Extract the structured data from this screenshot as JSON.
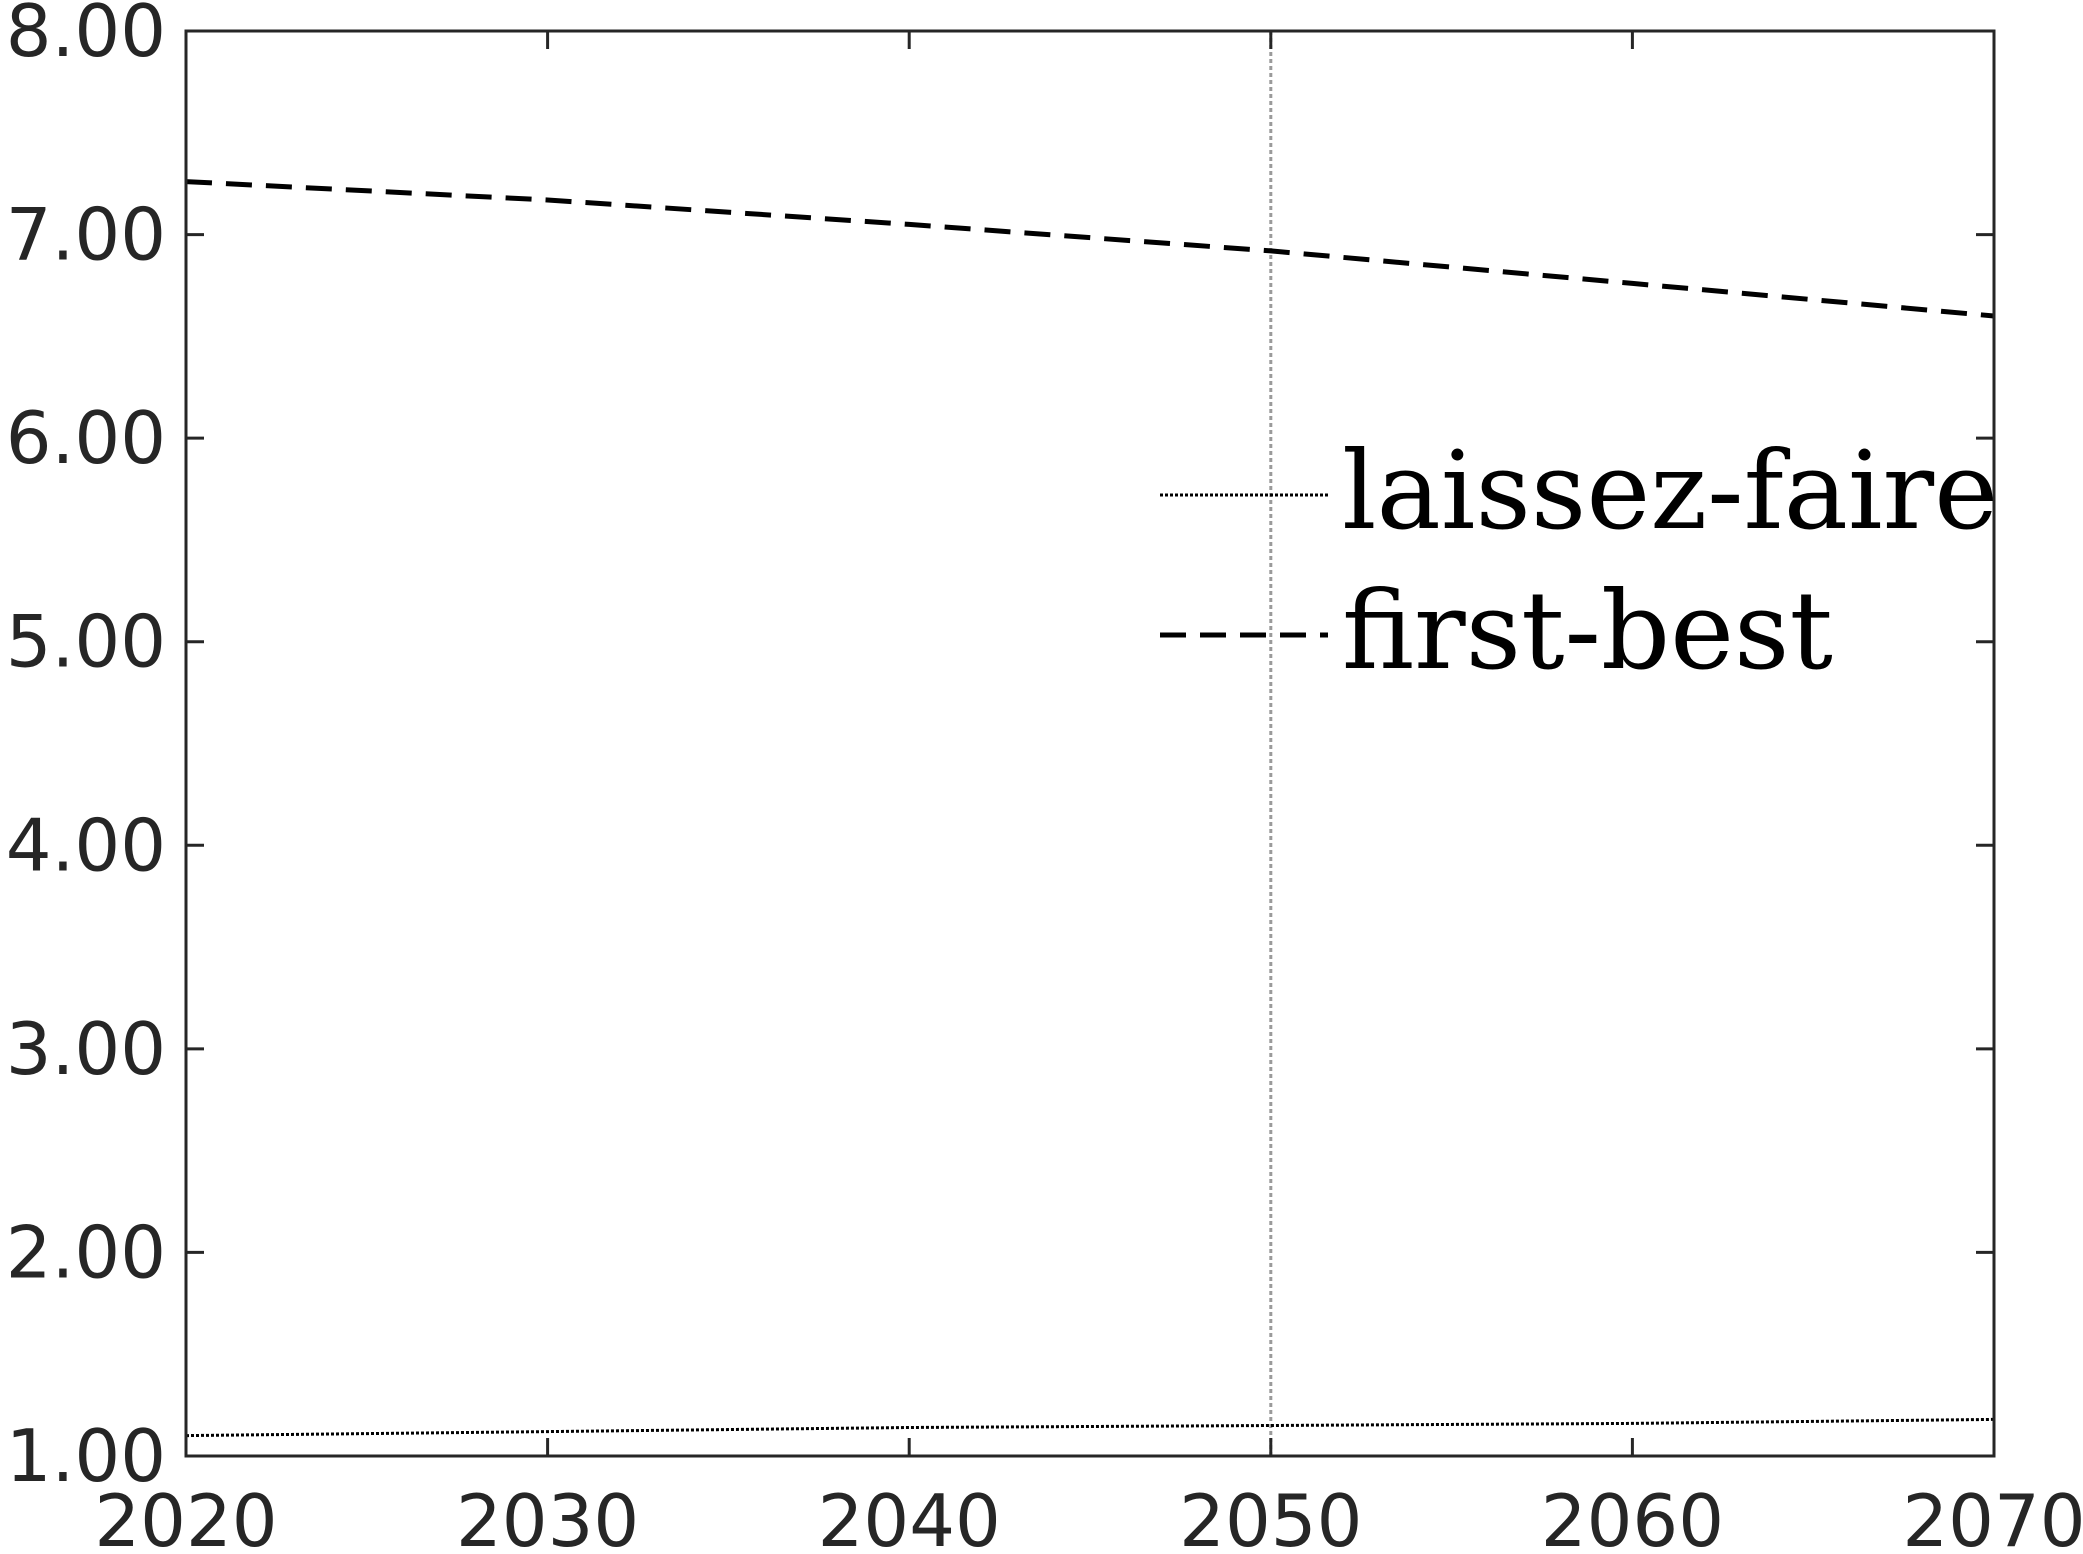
{
  "chart_data": {
    "type": "line",
    "title": "",
    "xlabel": "",
    "ylabel": "",
    "xlim": [
      2020,
      2070
    ],
    "ylim": [
      1.0,
      8.0
    ],
    "x_ticks": [
      "2020",
      "2030",
      "2040",
      "2050",
      "2060",
      "2070"
    ],
    "y_ticks": [
      "1.00",
      "2.00",
      "3.00",
      "4.00",
      "5.00",
      "6.00",
      "7.00",
      "8.00"
    ],
    "grid": false,
    "reference_line": {
      "x": 2050,
      "style": "dotted",
      "color": "#9a9a9a"
    },
    "legend": {
      "placement": "center-right"
    },
    "series": [
      {
        "name": "laissez-faire",
        "style": "dotted",
        "color": "#000000",
        "x": [
          2020,
          2030,
          2040,
          2050,
          2060,
          2070
        ],
        "y": [
          1.1,
          1.12,
          1.14,
          1.15,
          1.16,
          1.18
        ]
      },
      {
        "name": "first-best",
        "style": "dashed",
        "color": "#000000",
        "x": [
          2020,
          2030,
          2040,
          2050,
          2060,
          2070
        ],
        "y": [
          7.26,
          7.17,
          7.05,
          6.92,
          6.76,
          6.6
        ]
      }
    ]
  }
}
